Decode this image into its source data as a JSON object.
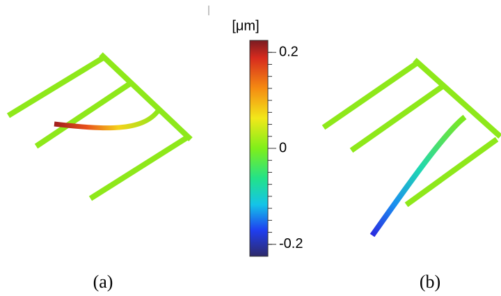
{
  "colorbar": {
    "unit": "[μm]",
    "lim": [
      -0.225,
      0.225
    ],
    "ticks": [
      0.2,
      0,
      -0.2
    ]
  },
  "panels": [
    {
      "label": "(a)"
    },
    {
      "label": "(b)"
    }
  ]
}
